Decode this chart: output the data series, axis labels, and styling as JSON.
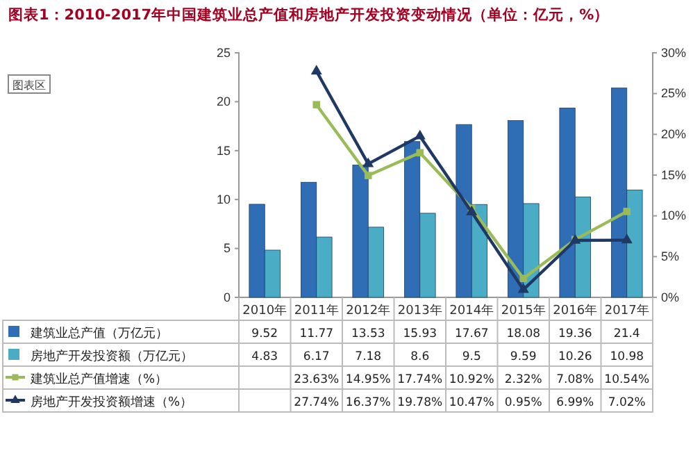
{
  "chart_data": {
    "type": "bar",
    "title": "图表1：2010-2017年中国建筑业总产值和房地产开发投资变动情况（单位：亿元，%）",
    "categories": [
      "2010年",
      "2011年",
      "2012年",
      "2013年",
      "2014年",
      "2015年",
      "2016年",
      "2017年"
    ],
    "series": [
      {
        "name": "建筑业总产值（万亿元）",
        "color": "#2f6db5",
        "values": [
          9.52,
          11.77,
          13.53,
          15.93,
          17.67,
          18.08,
          19.36,
          21.4
        ],
        "value_labels": [
          "9.52",
          "11.77",
          "13.53",
          "15.93",
          "17.67",
          "18.08",
          "19.36",
          "21.4"
        ]
      },
      {
        "name": "房地产开发投资额（万亿元）",
        "color": "#4bacc6",
        "values": [
          4.83,
          6.17,
          7.18,
          8.6,
          9.5,
          9.59,
          10.26,
          10.98
        ],
        "value_labels": [
          "4.83",
          "6.17",
          "7.18",
          "8.6",
          "9.5",
          "9.59",
          "10.26",
          "10.98"
        ]
      },
      {
        "name": "建筑业总产值增速（%）",
        "color": "#9bbb59",
        "type": "line",
        "axis": "y2",
        "marker": "square",
        "values": [
          null,
          23.63,
          14.95,
          17.74,
          10.92,
          2.32,
          7.08,
          10.54
        ],
        "value_labels": [
          null,
          "23.63%",
          "14.95%",
          "17.74%",
          "10.92%",
          "2.32%",
          "7.08%",
          "10.54%"
        ]
      },
      {
        "name": "房地产开发投资额增速（%）",
        "color": "#1f3864",
        "type": "line",
        "axis": "y2",
        "marker": "triangle",
        "values": [
          null,
          27.74,
          16.37,
          19.78,
          10.47,
          0.95,
          6.99,
          7.02
        ],
        "value_labels": [
          null,
          "27.74%",
          "16.37%",
          "19.78%",
          "10.47%",
          "0.95%",
          "6.99%",
          "7.02%"
        ]
      }
    ],
    "ylim": [
      0,
      25
    ],
    "yticks": [
      0,
      5,
      10,
      15,
      20,
      25
    ],
    "y2lim": [
      0,
      30
    ],
    "y2ticks": [
      {
        "value": 0,
        "label": "0%"
      },
      {
        "value": 5,
        "label": "5%"
      },
      {
        "value": 10,
        "label": "10%"
      },
      {
        "value": 15,
        "label": "15%"
      },
      {
        "value": 20,
        "label": "20%"
      },
      {
        "value": 25,
        "label": "25%"
      },
      {
        "value": 30,
        "label": "30%"
      }
    ],
    "legend": "bottom",
    "annotations": [
      "图表区"
    ]
  }
}
